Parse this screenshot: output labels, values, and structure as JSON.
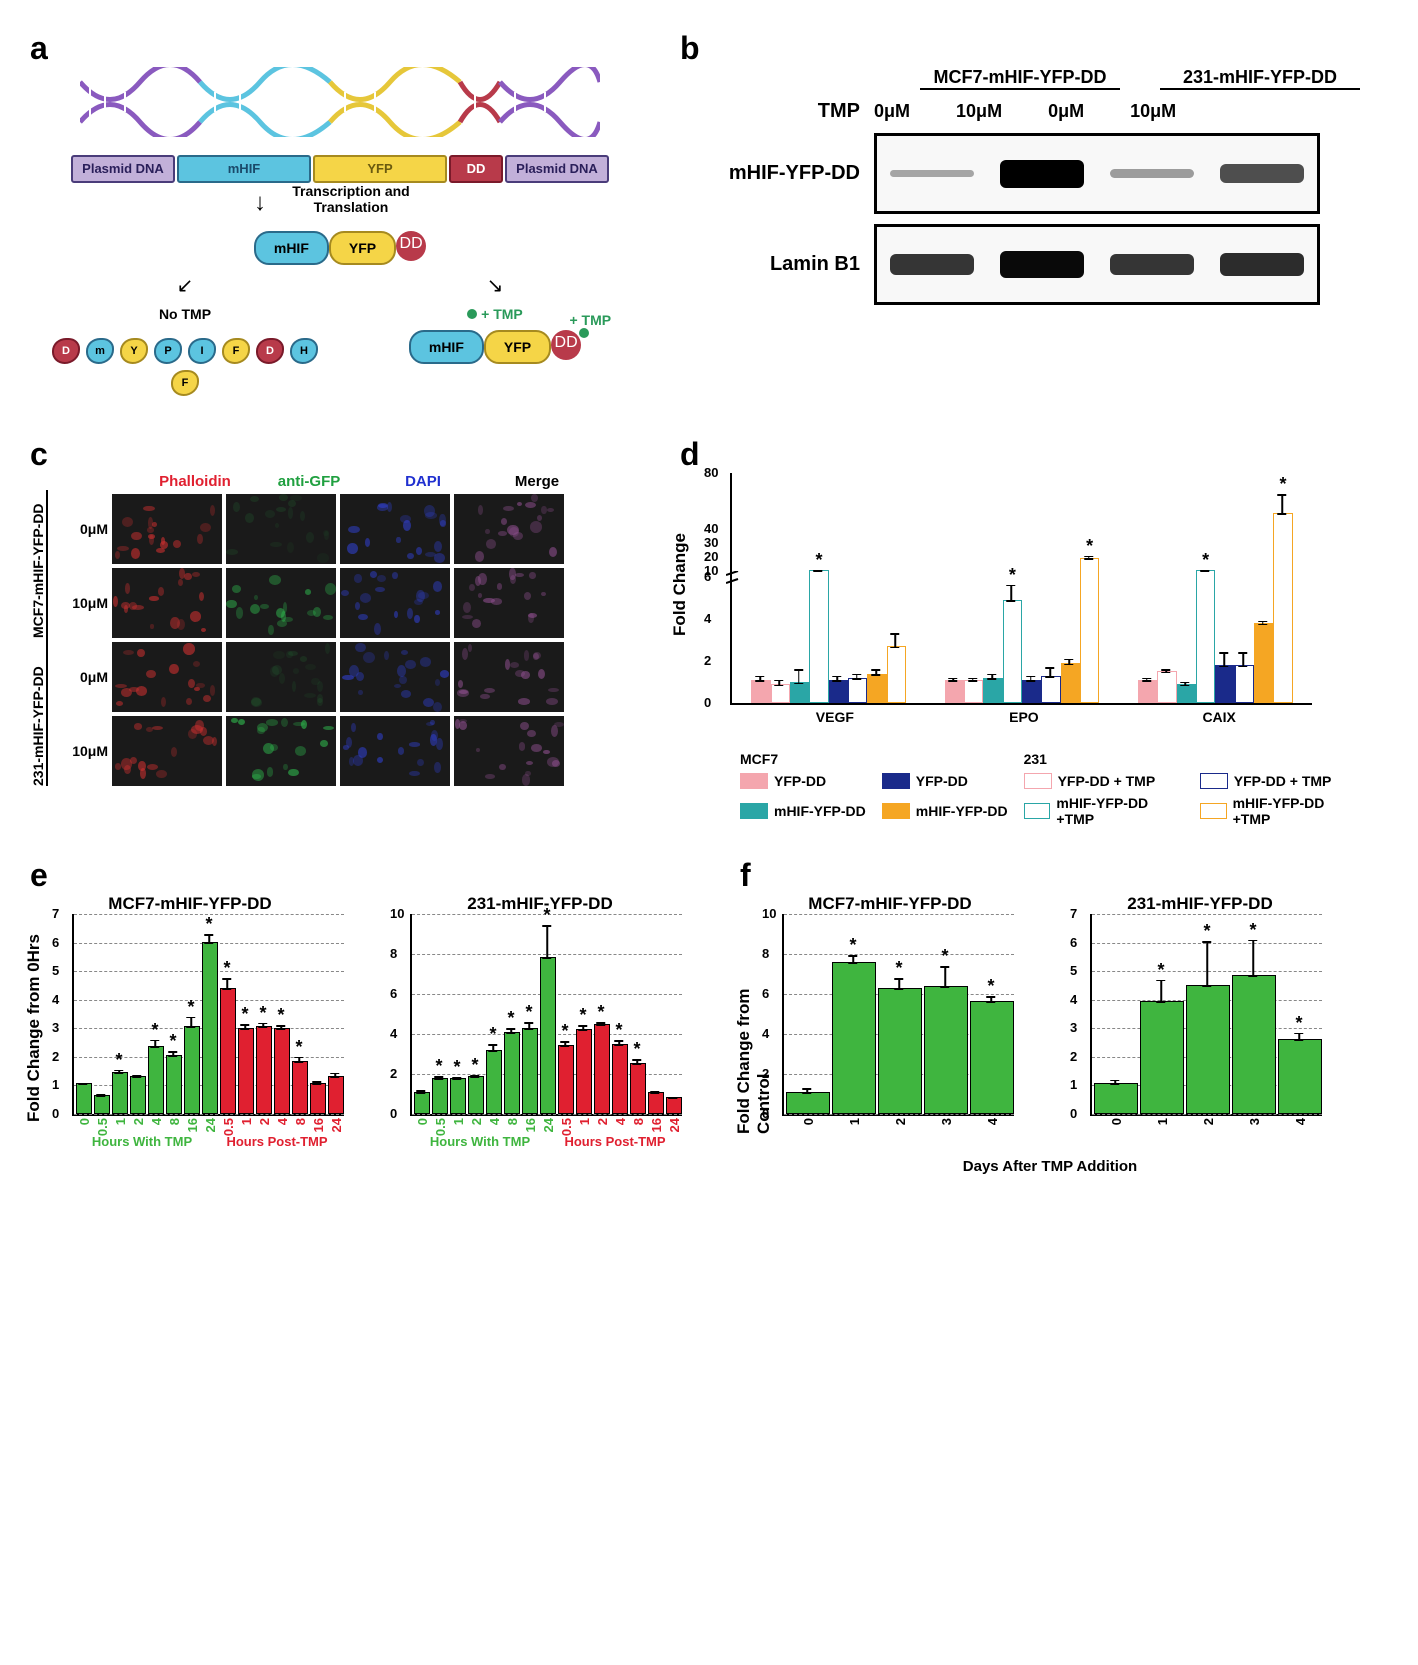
{
  "panelA": {
    "label": "a",
    "construct": [
      "Plasmid DNA",
      "mHIF",
      "YFP",
      "DD",
      "Plasmid DNA"
    ],
    "transcription_label": "Transcription and Translation",
    "no_tmp_label": "No TMP",
    "plus_tmp_label": "+ TMP",
    "protein_parts": [
      "mHIF",
      "YFP",
      "DD"
    ],
    "fragment_letters": [
      "D",
      "m",
      "Y",
      "P",
      "I",
      "F",
      "D",
      "H",
      "F"
    ],
    "colors": {
      "plasmid": "#c2b0d9",
      "mhif": "#5cc4e0",
      "yfp": "#f5d547",
      "dd": "#b83a4a",
      "tmp": "#2a9a5a"
    }
  },
  "panelB": {
    "label": "b",
    "headers": [
      "MCF7-mHIF-YFP-DD",
      "231-mHIF-YFP-DD"
    ],
    "tmp_label": "TMP",
    "concentrations": [
      "0μM",
      "10μM",
      "0μM",
      "10μM"
    ],
    "row_labels": [
      "mHIF-YFP-DD",
      "Lamin B1"
    ],
    "band_intensities": {
      "row1": [
        0.05,
        1.0,
        0.1,
        0.55
      ],
      "row2": [
        0.7,
        0.95,
        0.7,
        0.75
      ]
    }
  },
  "panelC": {
    "label": "c",
    "channels": [
      "Phalloidin",
      "anti-GFP",
      "DAPI",
      "Merge"
    ],
    "channel_colors": [
      "#e02030",
      "#20a040",
      "#2030d0",
      "#000000"
    ],
    "side_labels": [
      "MCF7-mHIF-YFP-DD",
      "231-mHIF-YFP-DD"
    ],
    "row_concs": [
      "0μM",
      "10μM",
      "0μM",
      "10μM"
    ]
  },
  "panelD": {
    "label": "d",
    "ylabel": "Fold Change",
    "genes": [
      "VEGF",
      "EPO",
      "CAIX"
    ],
    "series": [
      {
        "name": "YFP-DD",
        "cell": "MCF7",
        "color": "#f4a6ae",
        "fill": true
      },
      {
        "name": "YFP-DD + TMP",
        "cell": "MCF7",
        "color": "#f4a6ae",
        "fill": false
      },
      {
        "name": "mHIF-YFP-DD",
        "cell": "MCF7",
        "color": "#2aa6a6",
        "fill": true
      },
      {
        "name": "mHIF-YFP-DD +TMP",
        "cell": "MCF7",
        "color": "#2aa6a6",
        "fill": false
      },
      {
        "name": "YFP-DD",
        "cell": "231",
        "color": "#1a2a8a",
        "fill": true
      },
      {
        "name": "YFP-DD + TMP",
        "cell": "231",
        "color": "#1a2a8a",
        "fill": false
      },
      {
        "name": "mHIF-YFP-DD",
        "cell": "231",
        "color": "#f5a623",
        "fill": true
      },
      {
        "name": "mHIF-YFP-DD +TMP",
        "cell": "231",
        "color": "#f5a623",
        "fill": false
      }
    ],
    "yticks_lower": [
      0,
      2,
      4,
      6
    ],
    "yticks_upper": [
      10,
      20,
      30,
      40,
      80
    ],
    "values": {
      "VEGF": [
        1.0,
        0.8,
        0.9,
        9.5,
        1.0,
        1.1,
        1.3,
        2.6
      ],
      "EPO": [
        1.0,
        1.0,
        1.1,
        4.8,
        1.0,
        1.2,
        1.8,
        18
      ],
      "CAIX": [
        1.0,
        1.4,
        0.8,
        9.5,
        1.7,
        1.7,
        3.7,
        50
      ]
    },
    "errors": {
      "VEGF": [
        0.3,
        0.3,
        0.7,
        1.5,
        0.3,
        0.3,
        0.3,
        0.7
      ],
      "EPO": [
        0.2,
        0.2,
        0.3,
        0.8,
        0.3,
        0.5,
        0.3,
        3
      ],
      "CAIX": [
        0.2,
        0.2,
        0.2,
        1.5,
        0.7,
        0.7,
        0.2,
        15
      ]
    },
    "sig": {
      "VEGF": [
        false,
        false,
        false,
        true,
        false,
        false,
        false,
        false
      ],
      "EPO": [
        false,
        false,
        false,
        true,
        false,
        false,
        false,
        true
      ],
      "CAIX": [
        false,
        false,
        false,
        true,
        false,
        false,
        false,
        true
      ]
    },
    "legend_header_mcf7": "MCF7",
    "legend_header_231": "231"
  },
  "panelE": {
    "label": "e",
    "ylabel": "Fold Change from 0Hrs",
    "titles": [
      "MCF7-mHIF-YFP-DD",
      "231-mHIF-YFP-DD"
    ],
    "x_ticks": [
      "0",
      "0.5",
      "1",
      "2",
      "4",
      "8",
      "16",
      "24",
      "0.5",
      "1",
      "2",
      "4",
      "8",
      "16",
      "24"
    ],
    "x_colors_split": 8,
    "xlabel_with": "Hours With TMP",
    "xlabel_post": "Hours Post-TMP",
    "bar_color_with": "#3fb53f",
    "bar_color_post": "#e02030",
    "yticks": {
      "MCF7": [
        0,
        1,
        2,
        3,
        4,
        5,
        6,
        7
      ],
      "231": [
        0,
        2,
        4,
        6,
        8,
        10
      ]
    },
    "values": {
      "MCF7": [
        1.0,
        0.6,
        1.4,
        1.25,
        2.3,
        2.0,
        3.0,
        5.95,
        4.35,
        2.95,
        3.0,
        2.95,
        1.8,
        1.0,
        1.25
      ],
      "231": [
        1.0,
        1.7,
        1.7,
        1.8,
        3.1,
        4.0,
        4.2,
        7.75,
        3.35,
        4.15,
        4.4,
        3.4,
        2.45,
        1.0,
        0.75
      ]
    },
    "errors": {
      "MCF7": [
        0.1,
        0.1,
        0.15,
        0.1,
        0.3,
        0.2,
        0.4,
        0.35,
        0.4,
        0.2,
        0.2,
        0.15,
        0.2,
        0.15,
        0.2
      ],
      "231": [
        0.2,
        0.2,
        0.15,
        0.15,
        0.4,
        0.3,
        0.4,
        1.7,
        0.3,
        0.3,
        0.2,
        0.3,
        0.3,
        0.15,
        0.1
      ]
    },
    "sig": {
      "MCF7": [
        false,
        false,
        true,
        false,
        true,
        true,
        true,
        true,
        true,
        true,
        true,
        true,
        true,
        false,
        false
      ],
      "231": [
        false,
        true,
        true,
        true,
        true,
        true,
        true,
        true,
        true,
        true,
        true,
        true,
        true,
        false,
        false
      ]
    }
  },
  "panelF": {
    "label": "f",
    "ylabel": "Fold Change from Control",
    "titles": [
      "MCF7-mHIF-YFP-DD",
      "231-mHIF-YFP-DD"
    ],
    "xlabel": "Days After TMP Addition",
    "x_ticks": [
      "0",
      "1",
      "2",
      "3",
      "4"
    ],
    "bar_color": "#3fb53f",
    "yticks": {
      "MCF7": [
        0,
        2,
        4,
        6,
        8,
        10
      ],
      "231": [
        0,
        1,
        2,
        3,
        4,
        5,
        6,
        7
      ]
    },
    "values": {
      "MCF7": [
        1.0,
        7.5,
        6.2,
        6.3,
        5.55
      ],
      "231": [
        1.0,
        3.9,
        4.45,
        4.8,
        2.55
      ]
    },
    "errors": {
      "MCF7": [
        0.3,
        0.45,
        0.6,
        1.1,
        0.35
      ],
      "231": [
        0.2,
        0.8,
        1.6,
        1.3,
        0.3
      ]
    },
    "sig": {
      "MCF7": [
        false,
        true,
        true,
        true,
        true
      ],
      "231": [
        false,
        true,
        true,
        true,
        true
      ]
    }
  }
}
